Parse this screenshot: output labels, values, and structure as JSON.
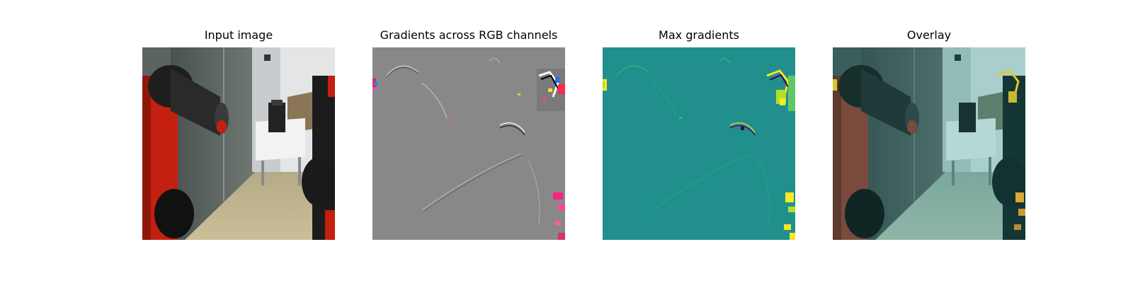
{
  "figure": {
    "panels": [
      {
        "title": "Input image",
        "icon": "robot-lab-photo"
      },
      {
        "title": "Gradients across RGB channels",
        "icon": "rgb-gradient-map"
      },
      {
        "title": "Max gradients",
        "icon": "max-gradient-heatmap"
      },
      {
        "title": "Overlay",
        "icon": "gradient-overlay-photo"
      }
    ]
  },
  "colors": {
    "gradient_gray": "#888888",
    "heatmap_teal": "#21908d",
    "heatmap_yellow": "#fde725",
    "robot_red": "#c4200f"
  }
}
